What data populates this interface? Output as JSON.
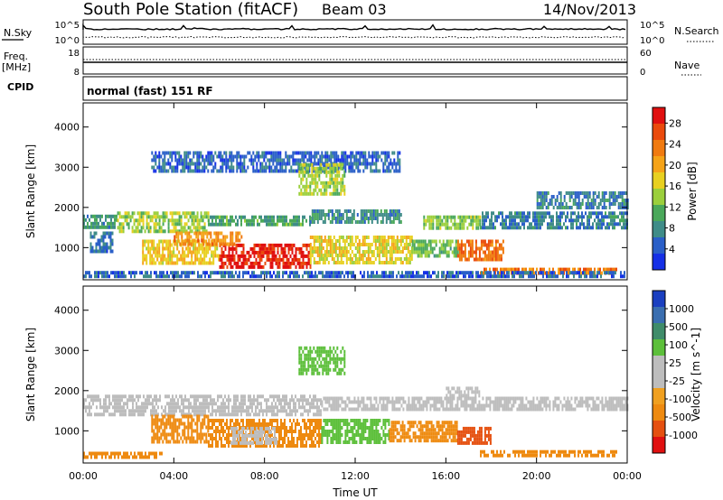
{
  "header": {
    "station": "South Pole Station (fitACF)",
    "beam": "Beam 03",
    "date": "14/Nov/2013"
  },
  "strips": {
    "nsky_label": "N.Sky",
    "nsky_ticks": [
      "10^5",
      "10^0"
    ],
    "nsearch_label": "N.Search",
    "nsearch_ticks": [
      "10^5",
      "10^0"
    ],
    "freq_label": [
      "Freq.",
      "[MHz]"
    ],
    "freq_ticks": [
      "18",
      "8"
    ],
    "nave_label": "Nave",
    "nave_ticks": [
      "60",
      "0"
    ],
    "cpid_label": "CPID",
    "cpid_value": "normal (fast) 151 RF"
  },
  "colors": {
    "frame": "#000000",
    "power_scale": [
      "#1530e6",
      "#2a5fc8",
      "#3f8c88",
      "#4aa85a",
      "#9bcf3c",
      "#e8d020",
      "#f5a318",
      "#f07a10",
      "#ea4a0c",
      "#e01010"
    ],
    "velocity_scale": [
      "#1a3fc0",
      "#3a6eb0",
      "#3f8c6a",
      "#5cbf3a",
      "#bdbdbd",
      "#bdbdbd",
      "#f0a020",
      "#ee8a10",
      "#e55010",
      "#e01010"
    ]
  },
  "chart_data": [
    {
      "type": "heatmap",
      "panel": "power",
      "title": "",
      "ylabel": "Slant Range [km]",
      "ylim": [
        200,
        4600
      ],
      "yticks": [
        "1000",
        "2000",
        "3000",
        "4000"
      ],
      "xlim_hours": [
        0,
        24
      ],
      "colorbar_label": "Power [dB]",
      "colorbar_ticks": [
        "4",
        "8",
        "12",
        "16",
        "20",
        "24",
        "28"
      ],
      "colorbar_range": [
        0,
        31
      ],
      "regions": [
        {
          "t0": 0.0,
          "t1": 1.5,
          "r0": 1500,
          "r1": 1820,
          "v": 9
        },
        {
          "t0": 1.5,
          "t1": 5.5,
          "r0": 1450,
          "r1": 1900,
          "v": 14
        },
        {
          "t0": 5.5,
          "t1": 10.0,
          "r0": 1550,
          "r1": 1800,
          "v": 10
        },
        {
          "t0": 10.0,
          "t1": 14.0,
          "r0": 1600,
          "r1": 1950,
          "v": 8
        },
        {
          "t0": 15.0,
          "t1": 17.5,
          "r0": 1500,
          "r1": 1800,
          "v": 13
        },
        {
          "t0": 17.5,
          "t1": 24.0,
          "r0": 1500,
          "r1": 1900,
          "v": 7
        },
        {
          "t0": 0.3,
          "t1": 1.3,
          "r0": 900,
          "r1": 1400,
          "v": 6
        },
        {
          "t0": 2.6,
          "t1": 6.0,
          "r0": 600,
          "r1": 1200,
          "v": 18
        },
        {
          "t0": 6.0,
          "t1": 10.0,
          "r0": 500,
          "r1": 1100,
          "v": 29
        },
        {
          "t0": 4.0,
          "t1": 7.0,
          "r0": 1100,
          "r1": 1400,
          "v": 22
        },
        {
          "t0": 10.0,
          "t1": 14.5,
          "r0": 600,
          "r1": 1300,
          "v": 17
        },
        {
          "t0": 14.5,
          "t1": 16.5,
          "r0": 800,
          "r1": 1200,
          "v": 12
        },
        {
          "t0": 16.5,
          "t1": 18.5,
          "r0": 700,
          "r1": 1200,
          "v": 24
        },
        {
          "t0": 17.5,
          "t1": 23.5,
          "r0": 350,
          "r1": 500,
          "v": 23
        },
        {
          "t0": 0.0,
          "t1": 24.0,
          "r0": 300,
          "r1": 420,
          "v": 5
        },
        {
          "t0": 3.0,
          "t1": 14.0,
          "r0": 2950,
          "r1": 3400,
          "v": 5
        },
        {
          "t0": 9.5,
          "t1": 11.5,
          "r0": 2350,
          "r1": 3100,
          "v": 14
        },
        {
          "t0": 20.0,
          "t1": 24.0,
          "r0": 2000,
          "r1": 2400,
          "v": 7
        }
      ]
    },
    {
      "type": "heatmap",
      "panel": "velocity",
      "title": "",
      "ylabel": "Slant Range [km]",
      "ylim": [
        200,
        4600
      ],
      "yticks": [
        "1000",
        "2000",
        "3000",
        "4000"
      ],
      "xlim_hours": [
        0,
        24
      ],
      "xticks": [
        "00:00",
        "04:00",
        "08:00",
        "12:00",
        "16:00",
        "20:00",
        "00:00"
      ],
      "xlabel": "Time UT",
      "colorbar_label": "Velocity [m s^-1]",
      "colorbar_ticks": [
        "1000",
        "500",
        "100",
        "25",
        "-25",
        "-100",
        "-500",
        "-1000"
      ],
      "colorbar_range": [
        -1200,
        1200
      ],
      "regions": [
        {
          "t0": 0.0,
          "t1": 10.5,
          "r0": 1450,
          "r1": 1900,
          "v": 0
        },
        {
          "t0": 10.5,
          "t1": 24.0,
          "r0": 1500,
          "r1": 1850,
          "v": 0
        },
        {
          "t0": 3.0,
          "t1": 5.5,
          "r0": 700,
          "r1": 1400,
          "v": -200
        },
        {
          "t0": 5.5,
          "t1": 10.5,
          "r0": 600,
          "r1": 1300,
          "v": -150
        },
        {
          "t0": 6.5,
          "t1": 8.5,
          "r0": 700,
          "r1": 1100,
          "v": 60
        },
        {
          "t0": 10.5,
          "t1": 13.5,
          "r0": 700,
          "r1": 1300,
          "v": 400
        },
        {
          "t0": 13.5,
          "t1": 16.5,
          "r0": 800,
          "r1": 1250,
          "v": -120
        },
        {
          "t0": 16.5,
          "t1": 18.0,
          "r0": 700,
          "r1": 1100,
          "v": -800
        },
        {
          "t0": 17.5,
          "t1": 23.5,
          "r0": 350,
          "r1": 520,
          "v": -300
        },
        {
          "t0": 0.0,
          "t1": 3.5,
          "r0": 350,
          "r1": 480,
          "v": -150
        },
        {
          "t0": 9.5,
          "t1": 11.5,
          "r0": 2400,
          "r1": 3100,
          "v": 150
        },
        {
          "t0": 16.0,
          "t1": 17.5,
          "r0": 1900,
          "r1": 2100,
          "v": 60
        }
      ]
    }
  ]
}
